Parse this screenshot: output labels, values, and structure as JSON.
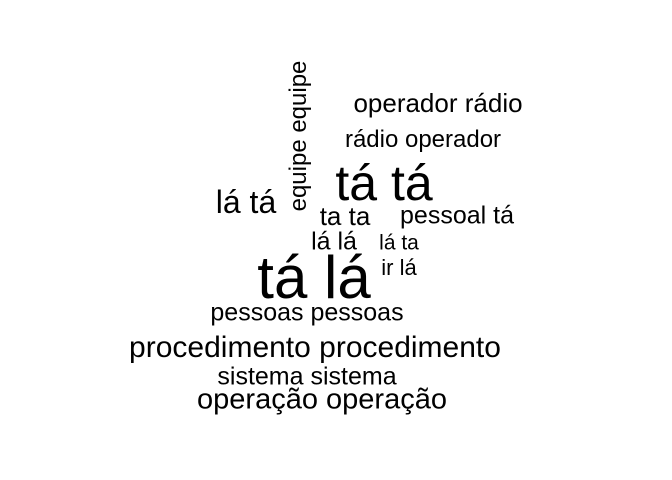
{
  "word_cloud": {
    "words": {
      "operador_radio": "operador rádio",
      "radio_operador": "rádio operador",
      "equipe_equipe": "equipe equipe",
      "ta_ta": "tá tá",
      "la_ta": "lá tá",
      "ta_ta_plain": "ta ta",
      "pessoal_ta": "pessoal tá",
      "la_la": "lá lá",
      "la_ta_plain": "lá ta",
      "ir_la": "ir lá",
      "ta_la": "tá lá",
      "pessoas_pessoas": "pessoas pessoas",
      "procedimento_procedimento": "procedimento procedimento",
      "sistema_sistema": "sistema sistema",
      "operacao_operacao": "operação operação"
    },
    "colors": {
      "text": "#000000",
      "background": "#ffffff"
    }
  }
}
